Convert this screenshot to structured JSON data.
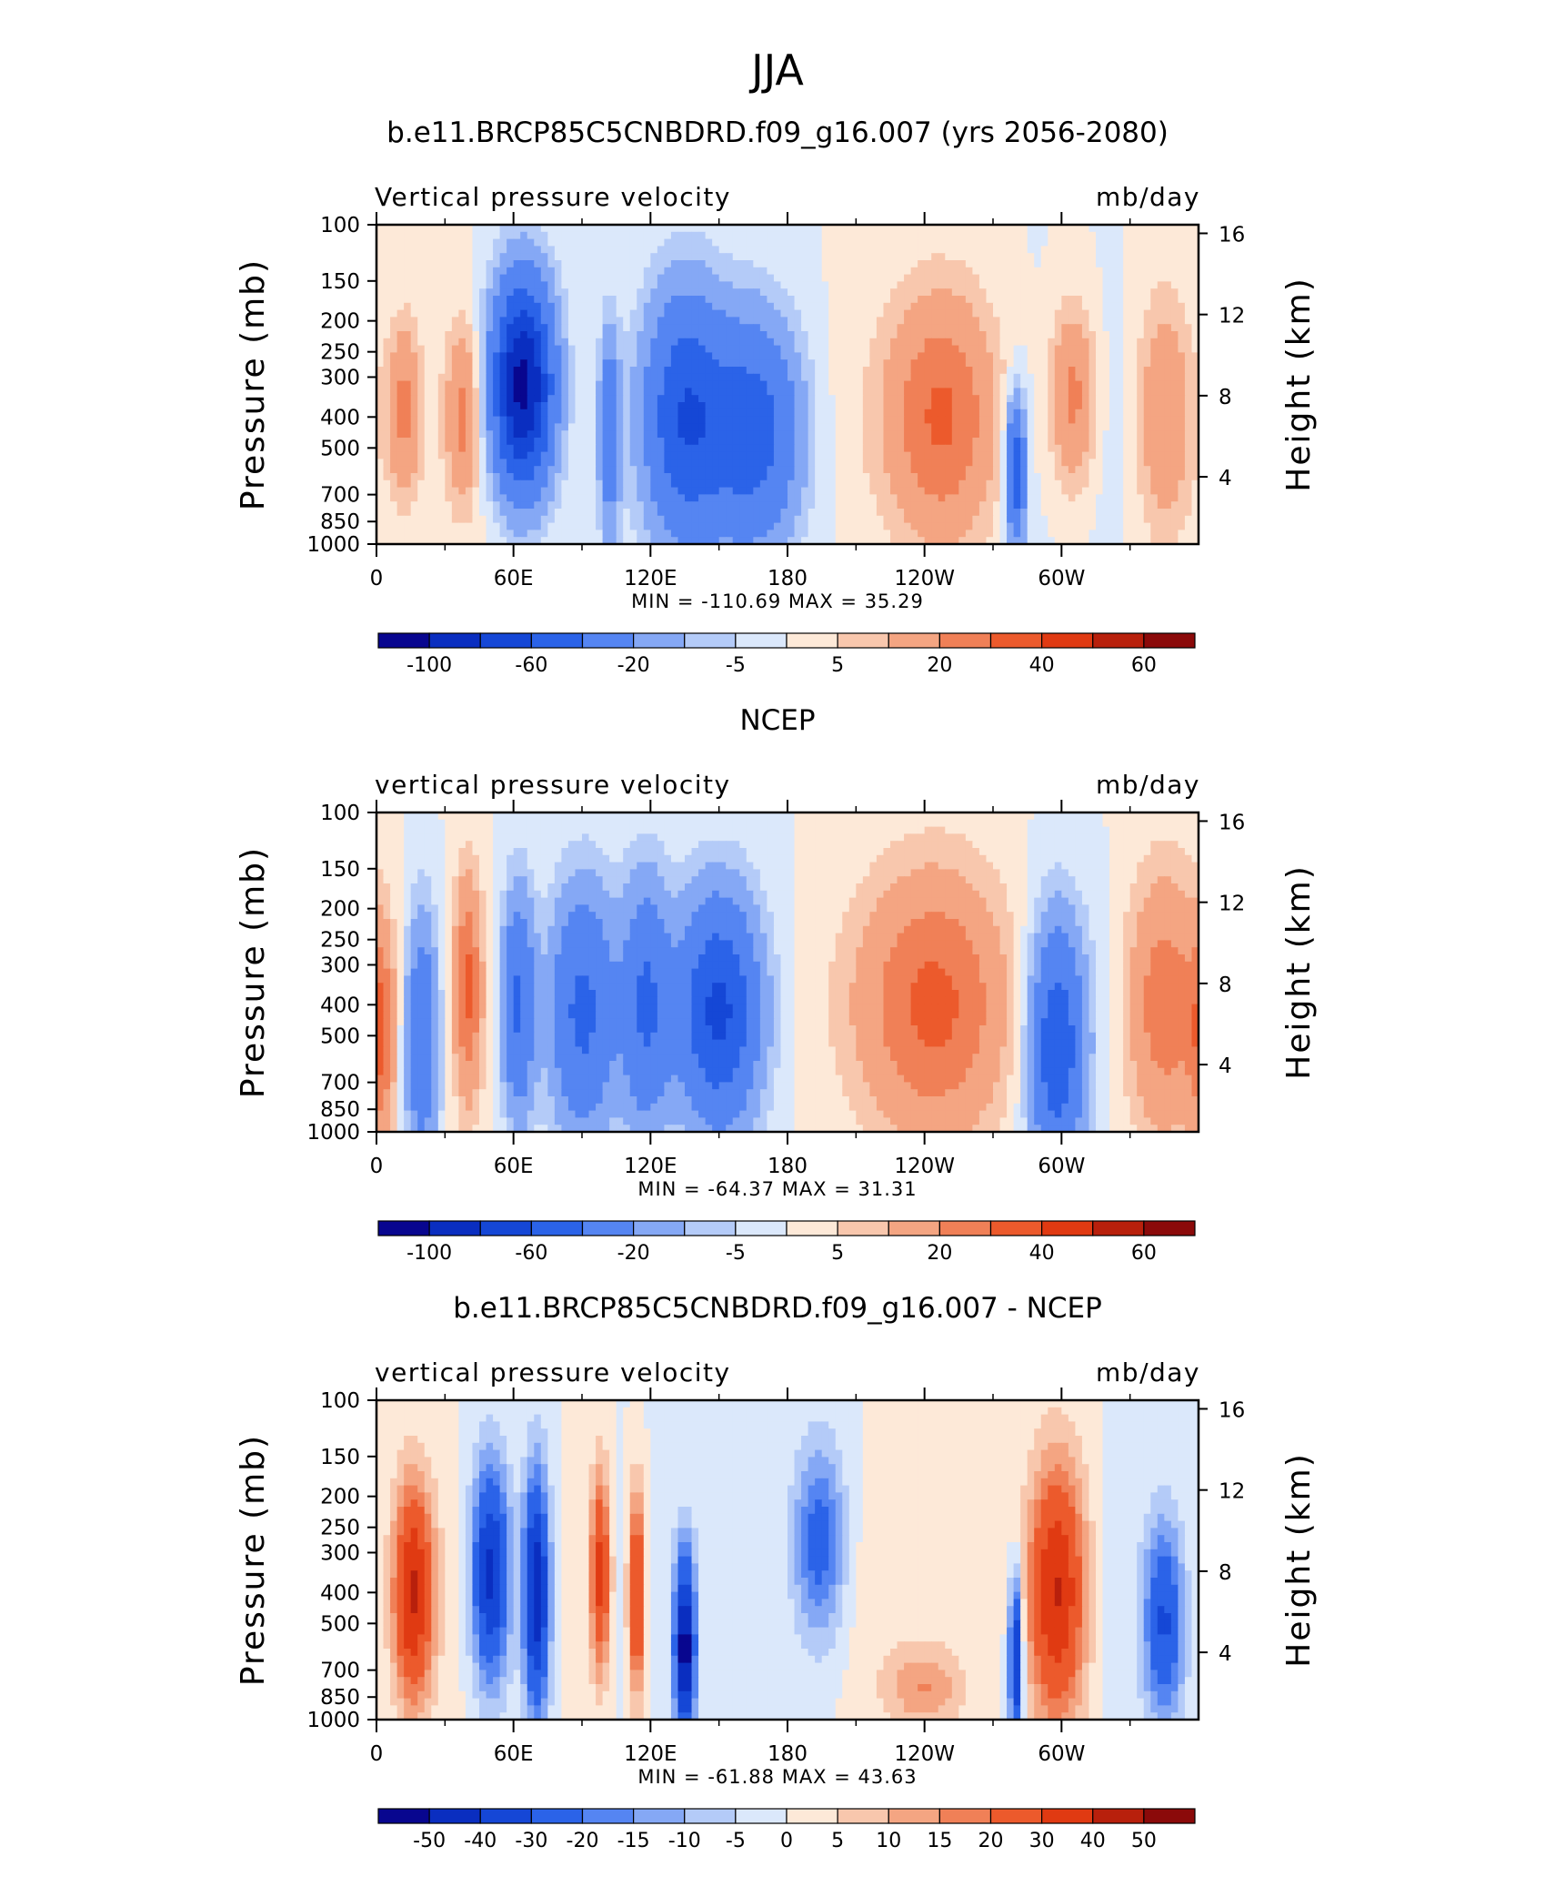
{
  "figure": {
    "title": "JJA"
  },
  "chart_data": [
    {
      "type": "heatmap",
      "title": "b.e11.BRCP85C5CNBDRD.f09_g16.007 (yrs 2056-2080)",
      "field_label": "Vertical pressure velocity",
      "units": "mb/day",
      "ylabel": "Pressure (mb)",
      "ylabel_right": "Height (km)",
      "x_ticks": [
        "0",
        "60E",
        "120E",
        "180",
        "120W",
        "60W"
      ],
      "x_tick_lons": [
        0,
        60,
        120,
        180,
        240,
        300
      ],
      "xlim": [
        0,
        360
      ],
      "y_ticks": [
        "100",
        "150",
        "200",
        "250",
        "300",
        "400",
        "500",
        "700",
        "850",
        "1000"
      ],
      "y_tick_values": [
        100,
        150,
        200,
        250,
        300,
        400,
        500,
        700,
        850,
        1000
      ],
      "ylim": [
        1000,
        100
      ],
      "y_scale": "log",
      "y_right_ticks": [
        "16",
        "12",
        "8",
        "4"
      ],
      "y_right_values": [
        16,
        12,
        8,
        4
      ],
      "stats_text": "MIN = -110.69   MAX =   35.29",
      "min": -110.69,
      "max": 35.29,
      "colorbar_labels": [
        "-100",
        "-60",
        "-20",
        "-5",
        "5",
        "20",
        "40",
        "60"
      ],
      "colorbar_levels": [
        -120,
        -100,
        -80,
        -60,
        -40,
        -20,
        -10,
        -5,
        0,
        5,
        10,
        20,
        30,
        40,
        50,
        60,
        80
      ],
      "colorbar_colors": [
        "#08068f",
        "#0a2ec0",
        "#1547d6",
        "#2b63e8",
        "#5585f2",
        "#85a8f5",
        "#b4cbf8",
        "#dbe8fb",
        "#fde9d8",
        "#f8c7ad",
        "#f4a582",
        "#f08057",
        "#ec5a2c",
        "#e03a12",
        "#b8200c",
        "#8b0a0a"
      ],
      "features": [
        {
          "lon": 12,
          "p": 380,
          "v": 22,
          "sx": 5,
          "sy": 0.42
        },
        {
          "lon": 38,
          "p": 400,
          "v": 22,
          "sx": 5,
          "sy": 0.42
        },
        {
          "lon": 64,
          "p": 320,
          "v": -110,
          "sx": 9,
          "sy": 0.5
        },
        {
          "lon": 102,
          "p": 450,
          "v": -35,
          "sx": 3,
          "sy": 0.5
        },
        {
          "lon": 135,
          "p": 400,
          "v": -55,
          "sx": 12,
          "sy": 0.6
        },
        {
          "lon": 165,
          "p": 450,
          "v": -50,
          "sx": 14,
          "sy": 0.55
        },
        {
          "lon": 248,
          "p": 400,
          "v": 30,
          "sx": 16,
          "sy": 0.6
        },
        {
          "lon": 280,
          "p": 600,
          "v": -55,
          "sx": 3,
          "sy": 0.35
        },
        {
          "lon": 305,
          "p": 350,
          "v": 25,
          "sx": 7,
          "sy": 0.45
        },
        {
          "lon": 345,
          "p": 400,
          "v": 20,
          "sx": 9,
          "sy": 0.6
        }
      ]
    },
    {
      "type": "heatmap",
      "title": "NCEP",
      "field_label": "vertical pressure velocity",
      "units": "mb/day",
      "ylabel": "Pressure (mb)",
      "ylabel_right": "Height (km)",
      "x_ticks": [
        "0",
        "60E",
        "120E",
        "180",
        "120W",
        "60W"
      ],
      "x_tick_lons": [
        0,
        60,
        120,
        180,
        240,
        300
      ],
      "xlim": [
        0,
        360
      ],
      "y_ticks": [
        "100",
        "150",
        "200",
        "250",
        "300",
        "400",
        "500",
        "700",
        "850",
        "1000"
      ],
      "y_tick_values": [
        100,
        150,
        200,
        250,
        300,
        400,
        500,
        700,
        850,
        1000
      ],
      "ylim": [
        1000,
        100
      ],
      "y_scale": "log",
      "y_right_ticks": [
        "16",
        "12",
        "8",
        "4"
      ],
      "y_right_values": [
        16,
        12,
        8,
        4
      ],
      "stats_text": "MIN = -64.37   MAX =   31.31",
      "min": -64.37,
      "max": 31.31,
      "colorbar_labels": [
        "-100",
        "-60",
        "-20",
        "-5",
        "5",
        "20",
        "40",
        "60"
      ],
      "colorbar_levels": [
        -120,
        -100,
        -80,
        -60,
        -40,
        -20,
        -10,
        -5,
        0,
        5,
        10,
        20,
        30,
        40,
        50,
        60,
        80
      ],
      "colorbar_colors": [
        "#08068f",
        "#0a2ec0",
        "#1547d6",
        "#2b63e8",
        "#5585f2",
        "#85a8f5",
        "#b4cbf8",
        "#dbe8fb",
        "#fde9d8",
        "#f8c7ad",
        "#f4a582",
        "#f08057",
        "#ec5a2c",
        "#e03a12",
        "#b8200c",
        "#8b0a0a"
      ],
      "features": [
        {
          "lon": 2,
          "p": 500,
          "v": 25,
          "sx": 4,
          "sy": 0.5
        },
        {
          "lon": 20,
          "p": 500,
          "v": -40,
          "sx": 5,
          "sy": 0.6
        },
        {
          "lon": 40,
          "p": 350,
          "v": 30,
          "sx": 4,
          "sy": 0.55
        },
        {
          "lon": 62,
          "p": 400,
          "v": -45,
          "sx": 5,
          "sy": 0.55
        },
        {
          "lon": 90,
          "p": 420,
          "v": -45,
          "sx": 10,
          "sy": 0.6
        },
        {
          "lon": 118,
          "p": 400,
          "v": -40,
          "sx": 7,
          "sy": 0.6
        },
        {
          "lon": 150,
          "p": 420,
          "v": -62,
          "sx": 12,
          "sy": 0.55
        },
        {
          "lon": 245,
          "p": 400,
          "v": 31,
          "sx": 22,
          "sy": 0.65
        },
        {
          "lon": 298,
          "p": 550,
          "v": -55,
          "sx": 8,
          "sy": 0.6
        },
        {
          "lon": 345,
          "p": 400,
          "v": 28,
          "sx": 12,
          "sy": 0.65
        }
      ]
    },
    {
      "type": "heatmap",
      "title": "b.e11.BRCP85C5CNBDRD.f09_g16.007 - NCEP",
      "field_label": "vertical pressure velocity",
      "units": "mb/day",
      "ylabel": "Pressure (mb)",
      "ylabel_right": "Height (km)",
      "x_ticks": [
        "0",
        "60E",
        "120E",
        "180",
        "120W",
        "60W"
      ],
      "x_tick_lons": [
        0,
        60,
        120,
        180,
        240,
        300
      ],
      "xlim": [
        0,
        360
      ],
      "y_ticks": [
        "100",
        "150",
        "200",
        "250",
        "300",
        "400",
        "500",
        "700",
        "850",
        "1000"
      ],
      "y_tick_values": [
        100,
        150,
        200,
        250,
        300,
        400,
        500,
        700,
        850,
        1000
      ],
      "ylim": [
        1000,
        100
      ],
      "y_scale": "log",
      "y_right_ticks": [
        "16",
        "12",
        "8",
        "4"
      ],
      "y_right_values": [
        16,
        12,
        8,
        4
      ],
      "stats_text": "MIN = -61.88   MAX =   43.63",
      "min": -61.88,
      "max": 43.63,
      "colorbar_labels": [
        "-50",
        "-40",
        "-30",
        "-20",
        "-15",
        "-10",
        "-5",
        "0",
        "5",
        "10",
        "15",
        "20",
        "30",
        "40",
        "50"
      ],
      "colorbar_levels": [
        -60,
        -50,
        -40,
        -30,
        -20,
        -15,
        -10,
        -5,
        0,
        5,
        10,
        15,
        20,
        30,
        40,
        50,
        60
      ],
      "colorbar_colors": [
        "#08068f",
        "#0a2ec0",
        "#1547d6",
        "#2b63e8",
        "#5585f2",
        "#85a8f5",
        "#b4cbf8",
        "#dbe8fb",
        "#fde9d8",
        "#f8c7ad",
        "#f4a582",
        "#f08057",
        "#ec5a2c",
        "#e03a12",
        "#b8200c",
        "#8b0a0a"
      ],
      "features": [
        {
          "lon": 16,
          "p": 400,
          "v": 40,
          "sx": 6,
          "sy": 0.55
        },
        {
          "lon": 50,
          "p": 350,
          "v": -45,
          "sx": 6,
          "sy": 0.55
        },
        {
          "lon": 70,
          "p": 400,
          "v": -50,
          "sx": 4,
          "sy": 0.6
        },
        {
          "lon": 98,
          "p": 350,
          "v": 35,
          "sx": 3,
          "sy": 0.5
        },
        {
          "lon": 114,
          "p": 400,
          "v": 38,
          "sx": 2.5,
          "sy": 0.5
        },
        {
          "lon": 135,
          "p": 600,
          "v": -55,
          "sx": 3,
          "sy": 0.45
        },
        {
          "lon": 194,
          "p": 280,
          "v": -25,
          "sx": 8,
          "sy": 0.5
        },
        {
          "lon": 240,
          "p": 800,
          "v": 14,
          "sx": 12,
          "sy": 0.2
        },
        {
          "lon": 298,
          "p": 400,
          "v": 43,
          "sx": 9,
          "sy": 0.65
        },
        {
          "lon": 280,
          "p": 650,
          "v": -45,
          "sx": 2,
          "sy": 0.4
        },
        {
          "lon": 345,
          "p": 500,
          "v": -30,
          "sx": 6,
          "sy": 0.5
        }
      ]
    }
  ]
}
